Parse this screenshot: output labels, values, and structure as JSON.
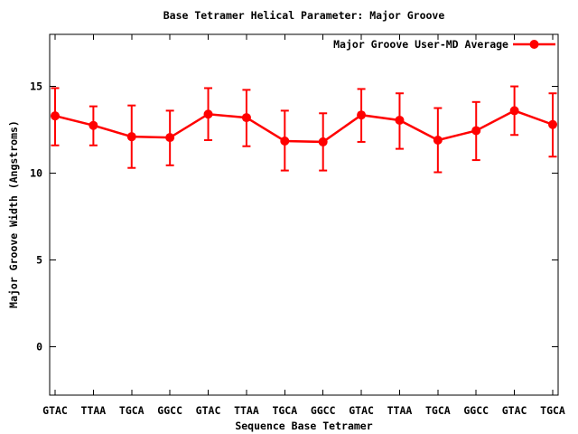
{
  "chart_data": {
    "type": "line",
    "title": "Base Tetramer Helical Parameter: Major Groove",
    "xlabel": "Sequence Base Tetramer",
    "ylabel": "Major Groove Width (Angstroms)",
    "legend_position": "top-right-inside",
    "grid": false,
    "error_bars": true,
    "marker": "filled-circle",
    "background_color": "#ffffff",
    "axis_color": "#000000",
    "yticks": [
      0,
      5,
      10,
      15
    ],
    "ylim": [
      -2.8,
      18
    ],
    "categories": [
      "GTAC",
      "TTAA",
      "TGCA",
      "GGCC",
      "GTAC",
      "TTAA",
      "TGCA",
      "GGCC",
      "GTAC",
      "TTAA",
      "TGCA",
      "GGCC",
      "GTAC",
      "TGCA"
    ],
    "series": [
      {
        "name": "Major Groove User-MD Average",
        "color": "#ff0000",
        "values": [
          13.3,
          12.75,
          12.1,
          12.05,
          13.4,
          13.2,
          11.85,
          11.8,
          13.35,
          13.05,
          11.9,
          12.45,
          13.6,
          12.8
        ],
        "err_low": [
          11.6,
          11.6,
          10.3,
          10.45,
          11.9,
          11.55,
          10.15,
          10.15,
          11.8,
          11.4,
          10.05,
          10.75,
          12.2,
          10.95
        ],
        "err_high": [
          14.9,
          13.85,
          13.9,
          13.6,
          14.9,
          14.8,
          13.6,
          13.45,
          14.85,
          14.6,
          13.75,
          14.1,
          15.0,
          14.6
        ]
      }
    ]
  }
}
